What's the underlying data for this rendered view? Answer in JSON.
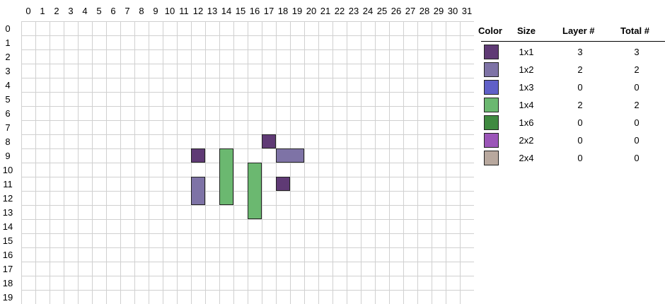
{
  "grid": {
    "columns": [
      "0",
      "1",
      "2",
      "3",
      "4",
      "5",
      "6",
      "7",
      "8",
      "9",
      "10",
      "11",
      "12",
      "13",
      "14",
      "15",
      "16",
      "17",
      "18",
      "19",
      "20",
      "21",
      "22",
      "23",
      "24",
      "25",
      "26",
      "27",
      "28",
      "29",
      "30",
      "31"
    ],
    "rows": [
      "0",
      "1",
      "2",
      "3",
      "4",
      "5",
      "6",
      "7",
      "8",
      "9",
      "10",
      "11",
      "12",
      "13",
      "14",
      "15",
      "16",
      "17",
      "18",
      "19"
    ],
    "bricks": [
      {
        "col": 17,
        "row": 8,
        "w": 1,
        "h": 1,
        "color": "#5f3a75",
        "size": "1x1"
      },
      {
        "col": 12,
        "row": 9,
        "w": 1,
        "h": 1,
        "color": "#5f3a75",
        "size": "1x1"
      },
      {
        "col": 18,
        "row": 11,
        "w": 1,
        "h": 1,
        "color": "#5f3a75",
        "size": "1x1"
      },
      {
        "col": 18,
        "row": 9,
        "w": 2,
        "h": 1,
        "color": "#7e73a6",
        "size": "1x2"
      },
      {
        "col": 12,
        "row": 11,
        "w": 1,
        "h": 2,
        "color": "#7e73a6",
        "size": "1x2"
      },
      {
        "col": 14,
        "row": 9,
        "w": 1,
        "h": 4,
        "color": "#6bb870",
        "size": "1x4"
      },
      {
        "col": 16,
        "row": 10,
        "w": 1,
        "h": 4,
        "color": "#6bb870",
        "size": "1x4"
      }
    ]
  },
  "legend": {
    "headers": {
      "color": "Color",
      "size": "Size",
      "layer": "Layer #",
      "total": "Total #"
    },
    "rows": [
      {
        "color": "#5f3a75",
        "size": "1x1",
        "layer": "3",
        "total": "3"
      },
      {
        "color": "#7e73a6",
        "size": "1x2",
        "layer": "2",
        "total": "2"
      },
      {
        "color": "#6060c8",
        "size": "1x3",
        "layer": "0",
        "total": "0"
      },
      {
        "color": "#6bb870",
        "size": "1x4",
        "layer": "2",
        "total": "2"
      },
      {
        "color": "#3f8a40",
        "size": "1x6",
        "layer": "0",
        "total": "0"
      },
      {
        "color": "#9b55b8",
        "size": "2x2",
        "layer": "0",
        "total": "0"
      },
      {
        "color": "#b8a89e",
        "size": "2x4",
        "layer": "0",
        "total": "0"
      }
    ]
  }
}
